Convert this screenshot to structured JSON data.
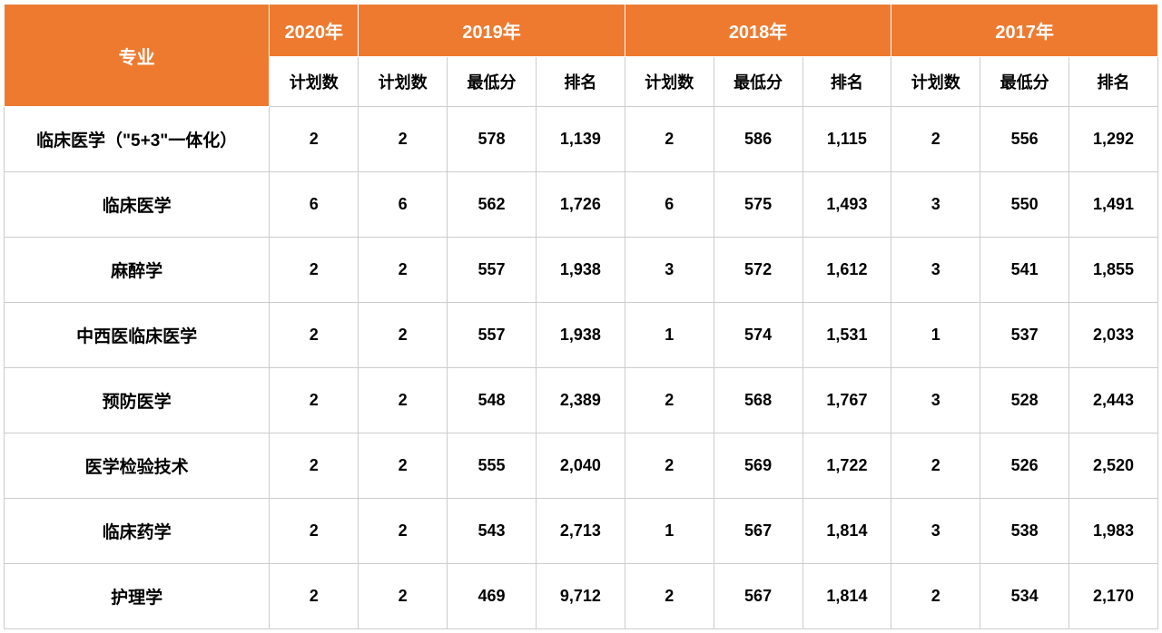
{
  "table": {
    "type": "table",
    "header_bg": "#ee7a30",
    "header_fg": "#ffffff",
    "cell_bg": "#ffffff",
    "cell_fg": "#000000",
    "border_color": "#cccccc",
    "header_border_color": "#ffffff",
    "header_fontsize": 20,
    "subheader_fontsize": 18,
    "cell_fontsize": 18,
    "font_weight": "bold",
    "top_headers": {
      "major": "专业",
      "y2020": "2020年",
      "y2019": "2019年",
      "y2018": "2018年",
      "y2017": "2017年"
    },
    "sub_headers": {
      "plan": "计划数",
      "score": "最低分",
      "rank": "排名"
    },
    "rows": [
      {
        "major": "临床医学（\"5+3\"一体化）",
        "c": [
          "2",
          "2",
          "578",
          "1,139",
          "2",
          "586",
          "1,115",
          "2",
          "556",
          "1,292"
        ]
      },
      {
        "major": "临床医学",
        "c": [
          "6",
          "6",
          "562",
          "1,726",
          "6",
          "575",
          "1,493",
          "3",
          "550",
          "1,491"
        ]
      },
      {
        "major": "麻醉学",
        "c": [
          "2",
          "2",
          "557",
          "1,938",
          "3",
          "572",
          "1,612",
          "3",
          "541",
          "1,855"
        ]
      },
      {
        "major": "中西医临床医学",
        "c": [
          "2",
          "2",
          "557",
          "1,938",
          "1",
          "574",
          "1,531",
          "1",
          "537",
          "2,033"
        ]
      },
      {
        "major": "预防医学",
        "c": [
          "2",
          "2",
          "548",
          "2,389",
          "2",
          "568",
          "1,767",
          "3",
          "528",
          "2,443"
        ]
      },
      {
        "major": "医学检验技术",
        "c": [
          "2",
          "2",
          "555",
          "2,040",
          "2",
          "569",
          "1,722",
          "2",
          "526",
          "2,520"
        ]
      },
      {
        "major": "临床药学",
        "c": [
          "2",
          "2",
          "543",
          "2,713",
          "1",
          "567",
          "1,814",
          "3",
          "538",
          "1,983"
        ]
      },
      {
        "major": "护理学",
        "c": [
          "2",
          "2",
          "469",
          "9,712",
          "2",
          "567",
          "1,814",
          "2",
          "534",
          "2,170"
        ]
      }
    ]
  }
}
